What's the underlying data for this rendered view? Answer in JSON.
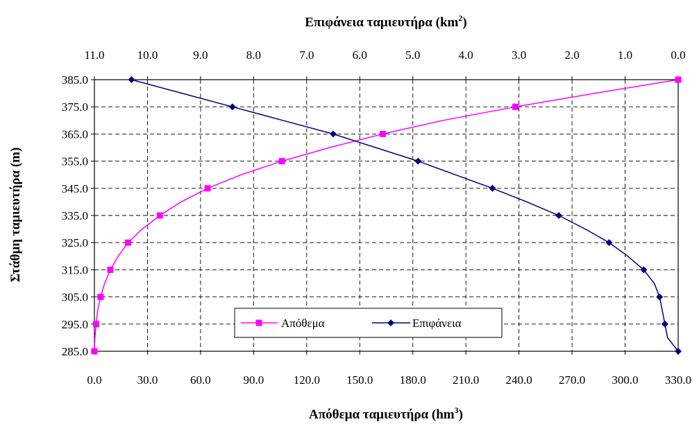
{
  "chart_data": {
    "type": "line",
    "top_axis": {
      "title_prefix": "Επιφάνεια ταμιευτήρα (km",
      "title_sup": "2",
      "title_suffix": ")",
      "min": 0.0,
      "max": 11.0,
      "reversed": true,
      "tick_labels": [
        "11.0",
        "10.0",
        "9.0",
        "8.0",
        "7.0",
        "6.0",
        "5.0",
        "4.0",
        "3.0",
        "2.0",
        "1.0",
        "0.0"
      ]
    },
    "bottom_axis": {
      "title_prefix": "Απόθεμα ταμιευτήρα (hm",
      "title_sup": "3",
      "title_suffix": ")",
      "min": 0.0,
      "max": 330.0,
      "tick_labels": [
        "0.0",
        "30.0",
        "60.0",
        "90.0",
        "120.0",
        "150.0",
        "180.0",
        "210.0",
        "240.0",
        "270.0",
        "300.0",
        "330.0"
      ]
    },
    "y_axis": {
      "title": "Στάθμη ταμιευτήρα (m)",
      "min": 285.0,
      "max": 385.0,
      "tick_labels": [
        "385.0",
        "375.0",
        "365.0",
        "355.0",
        "345.0",
        "335.0",
        "325.0",
        "315.0",
        "305.0",
        "295.0",
        "285.0"
      ]
    },
    "grid": true,
    "legend_position": "bottom-center",
    "series": [
      {
        "name": "Απόθεμα",
        "axis": "bottom",
        "color": "#ff00ff",
        "marker": "square",
        "points": [
          [
            0.0,
            285.0
          ],
          [
            1.0,
            295.0
          ],
          [
            3.5,
            305.0
          ],
          [
            9.0,
            315.0
          ],
          [
            19.0,
            325.0
          ],
          [
            37.0,
            335.0
          ],
          [
            64.0,
            345.0
          ],
          [
            106.0,
            355.0
          ],
          [
            163.0,
            365.0
          ],
          [
            238.0,
            375.0
          ],
          [
            330.0,
            385.0
          ]
        ],
        "curve_points": [
          [
            0.0,
            285.0
          ],
          [
            0.3,
            290.0
          ],
          [
            1.0,
            295.0
          ],
          [
            1.8,
            300.0
          ],
          [
            3.5,
            305.0
          ],
          [
            5.8,
            310.0
          ],
          [
            9.0,
            315.0
          ],
          [
            13.5,
            320.0
          ],
          [
            19.0,
            325.0
          ],
          [
            27.0,
            330.0
          ],
          [
            37.0,
            335.0
          ],
          [
            49.0,
            340.0
          ],
          [
            64.0,
            345.0
          ],
          [
            83.0,
            350.0
          ],
          [
            106.0,
            355.0
          ],
          [
            133.0,
            360.0
          ],
          [
            163.0,
            365.0
          ],
          [
            197.0,
            370.0
          ],
          [
            238.0,
            375.0
          ],
          [
            283.0,
            380.0
          ],
          [
            330.0,
            385.0
          ]
        ]
      },
      {
        "name": "Επιφάνεια",
        "axis": "top",
        "color": "#000080",
        "marker": "diamond",
        "points": [
          [
            0.0,
            285.0
          ],
          [
            0.25,
            295.0
          ],
          [
            0.35,
            305.0
          ],
          [
            0.65,
            315.0
          ],
          [
            1.3,
            325.0
          ],
          [
            2.25,
            335.0
          ],
          [
            3.5,
            345.0
          ],
          [
            4.9,
            355.0
          ],
          [
            6.5,
            365.0
          ],
          [
            8.4,
            375.0
          ],
          [
            10.3,
            385.0
          ]
        ],
        "curve_points": [
          [
            0.0,
            285.0
          ],
          [
            0.2,
            290.0
          ],
          [
            0.25,
            295.0
          ],
          [
            0.3,
            300.0
          ],
          [
            0.35,
            305.0
          ],
          [
            0.45,
            310.0
          ],
          [
            0.65,
            315.0
          ],
          [
            0.95,
            320.0
          ],
          [
            1.3,
            325.0
          ],
          [
            1.75,
            330.0
          ],
          [
            2.25,
            335.0
          ],
          [
            2.85,
            340.0
          ],
          [
            3.5,
            345.0
          ],
          [
            4.2,
            350.0
          ],
          [
            4.9,
            355.0
          ],
          [
            5.7,
            360.0
          ],
          [
            6.5,
            365.0
          ],
          [
            7.45,
            370.0
          ],
          [
            8.4,
            375.0
          ],
          [
            9.35,
            380.0
          ],
          [
            10.3,
            385.0
          ]
        ]
      }
    ]
  }
}
